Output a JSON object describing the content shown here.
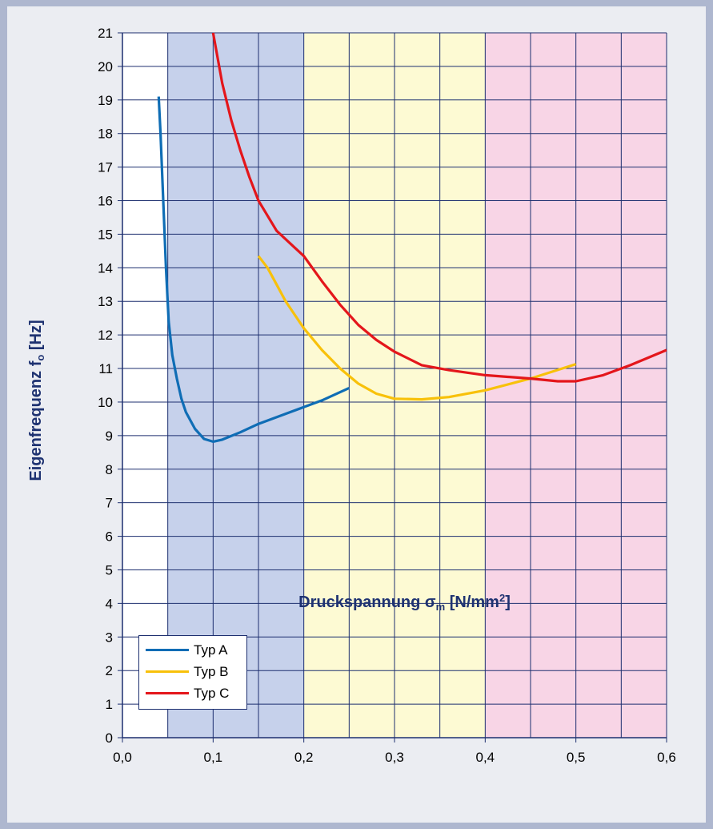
{
  "chart_data": {
    "type": "line",
    "xlabel_text": "Druckspannung σ",
    "xlabel_sub": "m",
    "xlabel_unit_pre": " [N/mm",
    "xlabel_sup": "2",
    "xlabel_unit_post": "]",
    "ylabel_text": "Eigenfrequenz f",
    "ylabel_sub": "o",
    "ylabel_unit": " [Hz]",
    "xlim": [
      0,
      0.6
    ],
    "ylim": [
      0,
      21
    ],
    "x_ticks": [
      "0,0",
      "0,1",
      "0,2",
      "0,3",
      "0,4",
      "0,5",
      "0,6"
    ],
    "y_ticks": [
      "0",
      "1",
      "2",
      "3",
      "4",
      "5",
      "6",
      "7",
      "8",
      "9",
      "10",
      "11",
      "12",
      "13",
      "14",
      "15",
      "16",
      "17",
      "18",
      "19",
      "20",
      "21"
    ],
    "grid": true,
    "legend_position": "bottom-left",
    "bands": [
      {
        "x0": 0.05,
        "x1": 0.2,
        "color": "#c6d1eb"
      },
      {
        "x0": 0.2,
        "x1": 0.4,
        "color": "#fdfad3"
      },
      {
        "x0": 0.4,
        "x1": 0.6,
        "color": "#f8d5e6"
      }
    ],
    "series": [
      {
        "name": "Typ A",
        "color": "#0f6db5",
        "points": [
          [
            0.04,
            19.1
          ],
          [
            0.042,
            18.0
          ],
          [
            0.045,
            16.0
          ],
          [
            0.048,
            14.0
          ],
          [
            0.051,
            12.4
          ],
          [
            0.055,
            11.4
          ],
          [
            0.06,
            10.7
          ],
          [
            0.065,
            10.1
          ],
          [
            0.07,
            9.7
          ],
          [
            0.08,
            9.2
          ],
          [
            0.09,
            8.9
          ],
          [
            0.1,
            8.82
          ],
          [
            0.11,
            8.88
          ],
          [
            0.13,
            9.1
          ],
          [
            0.15,
            9.35
          ],
          [
            0.18,
            9.65
          ],
          [
            0.2,
            9.85
          ],
          [
            0.22,
            10.05
          ],
          [
            0.25,
            10.42
          ]
        ]
      },
      {
        "name": "Typ B",
        "color": "#f8c10a",
        "points": [
          [
            0.15,
            14.35
          ],
          [
            0.16,
            14.0
          ],
          [
            0.17,
            13.5
          ],
          [
            0.18,
            13.0
          ],
          [
            0.19,
            12.6
          ],
          [
            0.2,
            12.2
          ],
          [
            0.22,
            11.55
          ],
          [
            0.24,
            11.0
          ],
          [
            0.26,
            10.55
          ],
          [
            0.28,
            10.25
          ],
          [
            0.3,
            10.1
          ],
          [
            0.33,
            10.08
          ],
          [
            0.36,
            10.15
          ],
          [
            0.4,
            10.35
          ],
          [
            0.45,
            10.7
          ],
          [
            0.5,
            11.13
          ]
        ]
      },
      {
        "name": "Typ C",
        "color": "#e4161b",
        "points": [
          [
            0.1,
            21.0
          ],
          [
            0.11,
            19.5
          ],
          [
            0.12,
            18.4
          ],
          [
            0.13,
            17.5
          ],
          [
            0.14,
            16.7
          ],
          [
            0.15,
            16.0
          ],
          [
            0.17,
            15.1
          ],
          [
            0.19,
            14.6
          ],
          [
            0.2,
            14.35
          ],
          [
            0.22,
            13.6
          ],
          [
            0.24,
            12.9
          ],
          [
            0.26,
            12.3
          ],
          [
            0.28,
            11.85
          ],
          [
            0.3,
            11.5
          ],
          [
            0.33,
            11.1
          ],
          [
            0.36,
            10.95
          ],
          [
            0.4,
            10.8
          ],
          [
            0.45,
            10.7
          ],
          [
            0.48,
            10.62
          ],
          [
            0.5,
            10.62
          ],
          [
            0.53,
            10.8
          ],
          [
            0.56,
            11.1
          ],
          [
            0.6,
            11.55
          ]
        ]
      }
    ]
  }
}
